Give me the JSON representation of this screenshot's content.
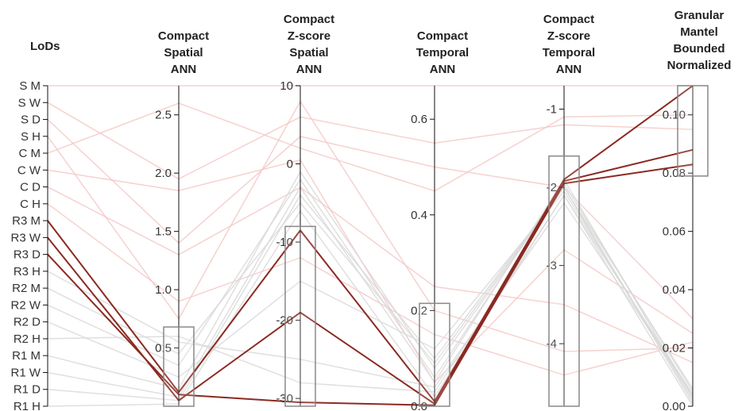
{
  "chart_data": {
    "type": "parallel_coordinates",
    "axes": [
      {
        "key": "lods",
        "title": [
          "LoDs"
        ],
        "scale": "ordinal",
        "categories": [
          "S M",
          "S W",
          "S D",
          "S H",
          "C M",
          "C W",
          "C D",
          "C H",
          "R3 M",
          "R3 W",
          "R3 D",
          "R3 H",
          "R2 M",
          "R2 W",
          "R2 D",
          "R2 H",
          "R1 M",
          "R1 W",
          "R1 D",
          "R1 H"
        ]
      },
      {
        "key": "cs_ann",
        "title": [
          "Compact",
          "Spatial",
          "ANN"
        ],
        "scale": "linear",
        "domain": [
          0,
          2.75
        ],
        "ticks": [
          0.5,
          1.0,
          1.5,
          2.0,
          2.5
        ],
        "tick_labels": [
          "0.5",
          "1.0",
          "1.5",
          "2.0",
          "2.5"
        ],
        "brush": [
          0,
          0.68
        ]
      },
      {
        "key": "czs_ann",
        "title": [
          "Compact",
          "Z-score",
          "Spatial",
          "ANN"
        ],
        "scale": "linear",
        "domain": [
          -31,
          10
        ],
        "ticks": [
          10,
          0,
          -10,
          -20,
          -30
        ],
        "tick_labels": [
          "10",
          "0",
          "-10",
          "-20",
          "-30"
        ],
        "brush": [
          -31,
          -8
        ]
      },
      {
        "key": "ct_ann",
        "title": [
          "Compact",
          "Temporal",
          "ANN"
        ],
        "scale": "linear",
        "domain": [
          0,
          0.67
        ],
        "ticks": [
          0.0,
          0.2,
          0.4,
          0.6
        ],
        "tick_labels": [
          "0.0",
          "0.2",
          "0.4",
          "0.6"
        ],
        "brush": [
          0,
          0.215
        ]
      },
      {
        "key": "czt_ann",
        "title": [
          "Compact",
          "Z-score",
          "Temporal",
          "ANN"
        ],
        "scale": "linear",
        "domain": [
          -4.8,
          -0.7
        ],
        "ticks": [
          -1,
          -2,
          -3,
          -4
        ],
        "tick_labels": [
          "-1",
          "-2",
          "-3",
          "-4"
        ],
        "brush": [
          -4.8,
          -1.6
        ]
      },
      {
        "key": "gmb_norm",
        "title": [
          "Granular",
          "Mantel",
          "Bounded",
          "Normalized"
        ],
        "scale": "linear",
        "domain": [
          0,
          0.11
        ],
        "ticks": [
          0.0,
          0.02,
          0.04,
          0.06,
          0.08,
          0.1
        ],
        "tick_labels": [
          "0.00",
          "0.02",
          "0.04",
          "0.06",
          "0.08",
          "0.10"
        ],
        "brush": [
          0.079,
          0.11
        ]
      }
    ],
    "series": [
      {
        "lods": "S M",
        "cs_ann": 2.75,
        "czs_ann": 10,
        "ct_ann": 0.67,
        "czt_ann": -0.7,
        "gmb_norm": 0.11
      },
      {
        "lods": "S W",
        "cs_ann": 1.95,
        "czs_ann": 6,
        "ct_ann": 0.55,
        "czt_ann": -1.2,
        "gmb_norm": 0.095
      },
      {
        "lods": "S D",
        "cs_ann": 1.4,
        "czs_ann": 3.5,
        "ct_ann": 0.5,
        "czt_ann": -2.0,
        "gmb_norm": 0.03
      },
      {
        "lods": "S H",
        "cs_ann": 0.75,
        "czs_ann": 8,
        "ct_ann": 0.2,
        "czt_ann": -4.1,
        "gmb_norm": 0.02
      },
      {
        "lods": "C M",
        "cs_ann": 2.6,
        "czs_ann": 2,
        "ct_ann": 0.45,
        "czt_ann": -1.1,
        "gmb_norm": 0.1
      },
      {
        "lods": "C W",
        "cs_ann": 1.85,
        "czs_ann": 0.5,
        "ct_ann": 0.05,
        "czt_ann": -2.8,
        "gmb_norm": 0.025
      },
      {
        "lods": "C D",
        "cs_ann": 1.3,
        "czs_ann": -3,
        "ct_ann": 0.25,
        "czt_ann": -3.5,
        "gmb_norm": 0.015
      },
      {
        "lods": "C H",
        "cs_ann": 0.9,
        "czs_ann": -12,
        "ct_ann": 0.15,
        "czt_ann": -4.4,
        "gmb_norm": 0.022
      },
      {
        "lods": "R3 M",
        "cs_ann": 0.12,
        "czs_ann": -8.5,
        "ct_ann": 0.01,
        "czt_ann": -1.9,
        "gmb_norm": 0.11
      },
      {
        "lods": "R3 W",
        "cs_ann": 0.05,
        "czs_ann": -19,
        "ct_ann": 0.005,
        "czt_ann": -1.92,
        "gmb_norm": 0.088
      },
      {
        "lods": "R3 D",
        "cs_ann": 0.1,
        "czs_ann": -30.5,
        "ct_ann": 0.002,
        "czt_ann": -1.95,
        "gmb_norm": 0.083
      },
      {
        "lods": "R3 H",
        "cs_ann": 0.55,
        "czs_ann": -25,
        "ct_ann": 0.04,
        "czt_ann": -2.2,
        "gmb_norm": 0.004
      },
      {
        "lods": "R2 M",
        "cs_ann": 0.45,
        "czs_ann": -5,
        "ct_ann": 0.09,
        "czt_ann": -2.0,
        "gmb_norm": 0.006
      },
      {
        "lods": "R2 W",
        "cs_ann": 0.35,
        "czs_ann": -2,
        "ct_ann": 0.06,
        "czt_ann": -1.95,
        "gmb_norm": 0.005
      },
      {
        "lods": "R2 D",
        "cs_ann": 0.25,
        "czs_ann": -15,
        "ct_ann": 0.12,
        "czt_ann": -2.05,
        "gmb_norm": 0.003
      },
      {
        "lods": "R2 H",
        "cs_ann": 0.6,
        "czs_ann": -28,
        "ct_ann": 0.03,
        "czt_ann": -2.1,
        "gmb_norm": 0.004
      },
      {
        "lods": "R1 M",
        "cs_ann": 0.15,
        "czs_ann": -1,
        "ct_ann": 0.08,
        "czt_ann": -2.0,
        "gmb_norm": 0.002
      },
      {
        "lods": "R1 W",
        "cs_ann": 0.08,
        "czs_ann": -3,
        "ct_ann": 0.05,
        "czt_ann": -1.9,
        "gmb_norm": 0.003
      },
      {
        "lods": "R1 D",
        "cs_ann": 0.05,
        "czs_ann": -4,
        "ct_ann": 0.1,
        "czt_ann": -2.0,
        "gmb_norm": 0.001
      },
      {
        "lods": "R1 H",
        "cs_ann": 0.02,
        "czs_ann": -6,
        "ct_ann": 0.02,
        "czt_ann": -2.1,
        "gmb_norm": 0.0
      }
    ],
    "colors": {
      "highlighted": "#8b2a22",
      "faded_pink": "#f5c9c7",
      "faded_gray": "#d9d9d9",
      "axis": "#111111",
      "brush_stroke": "#888888"
    }
  }
}
